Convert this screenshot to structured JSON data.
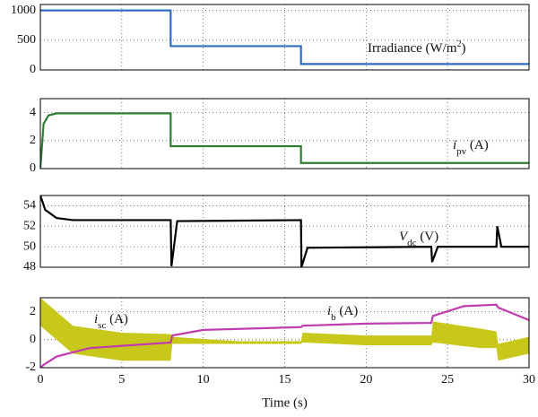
{
  "chart_data": [
    {
      "type": "line",
      "xlim": [
        0,
        30
      ],
      "xticks": [
        0,
        5,
        10,
        15,
        20,
        25,
        30
      ],
      "ylim": [
        0,
        1100
      ],
      "yticks": [
        0,
        500,
        1000
      ],
      "grid": true,
      "annotations": [
        {
          "text": "Irradiance (W/m",
          "sup": "2",
          "tail": ")"
        }
      ],
      "series": [
        {
          "color": "#2f6fc0",
          "x": [
            0,
            8,
            8,
            16,
            16,
            30
          ],
          "values": [
            1000,
            1000,
            400,
            400,
            100,
            100
          ]
        }
      ]
    },
    {
      "type": "line",
      "xlim": [
        0,
        30
      ],
      "xticks": [
        0,
        5,
        10,
        15,
        20,
        25,
        30
      ],
      "ylim": [
        0,
        5
      ],
      "yticks": [
        0,
        2,
        4
      ],
      "grid": true,
      "annotations": [
        {
          "text": "i",
          "sub": "pv",
          "tail": " (A)"
        }
      ],
      "series": [
        {
          "color": "#2e7d32",
          "x": [
            0,
            0.2,
            0.5,
            1,
            8,
            8,
            16,
            16,
            30
          ],
          "values": [
            0,
            3.2,
            3.8,
            3.95,
            3.95,
            1.6,
            1.6,
            0.4,
            0.4
          ]
        }
      ]
    },
    {
      "type": "line",
      "xlim": [
        0,
        30
      ],
      "xticks": [
        0,
        5,
        10,
        15,
        20,
        25,
        30
      ],
      "ylim": [
        48,
        55
      ],
      "yticks": [
        48,
        50,
        52,
        54
      ],
      "grid": true,
      "annotations": [
        {
          "text": "V",
          "sub": "dc",
          "tail": " (V)"
        }
      ],
      "series": [
        {
          "color": "#000000",
          "x": [
            0,
            0.3,
            1,
            2,
            8,
            8.05,
            8.4,
            16,
            16.03,
            16.4,
            24,
            24.05,
            24.4,
            28,
            28.05,
            28.3,
            30
          ],
          "values": [
            55,
            53.6,
            52.8,
            52.6,
            52.6,
            48.1,
            52.5,
            52.6,
            48,
            49.9,
            50,
            48.5,
            50,
            50,
            52,
            50,
            50
          ]
        }
      ]
    },
    {
      "type": "line",
      "xlim": [
        0,
        30
      ],
      "xticks": [
        0,
        5,
        10,
        15,
        20,
        25,
        30
      ],
      "ylim": [
        -2,
        3
      ],
      "yticks": [
        -2,
        0,
        2
      ],
      "grid": true,
      "xlabel": "Time (s)",
      "annotations": [
        {
          "text": "i",
          "sub": "sc",
          "tail": " (A)"
        },
        {
          "text": "i",
          "sub": "b",
          "tail": " (A)"
        }
      ],
      "bands": [
        {
          "color": "#c8c81a",
          "x": [
            0,
            2,
            5,
            8,
            8.1,
            12,
            16,
            16.1,
            20,
            24,
            24.1,
            27,
            28,
            28.1,
            30
          ],
          "upper": [
            3,
            1,
            0.5,
            0.4,
            0.2,
            -0.1,
            -0.1,
            0.5,
            0.3,
            0.3,
            1.3,
            0.8,
            0.6,
            -0.3,
            0.2
          ],
          "lower": [
            1,
            -1,
            -1.5,
            -1.5,
            -0.3,
            -0.3,
            -0.3,
            -0.2,
            -0.4,
            -0.4,
            -0.2,
            -0.6,
            -0.6,
            -1.5,
            -1
          ]
        }
      ],
      "series": [
        {
          "color": "#c03cb0",
          "x": [
            0,
            0.2,
            1,
            3,
            8,
            8.1,
            10,
            16,
            16.1,
            20,
            24,
            24.1,
            26,
            28,
            28.1,
            30
          ],
          "values": [
            -2,
            -1.8,
            -1.2,
            -0.6,
            -0.2,
            0.3,
            0.7,
            0.9,
            1,
            1.15,
            1.2,
            1.7,
            2.4,
            2.5,
            2.3,
            1.4
          ]
        }
      ]
    }
  ]
}
